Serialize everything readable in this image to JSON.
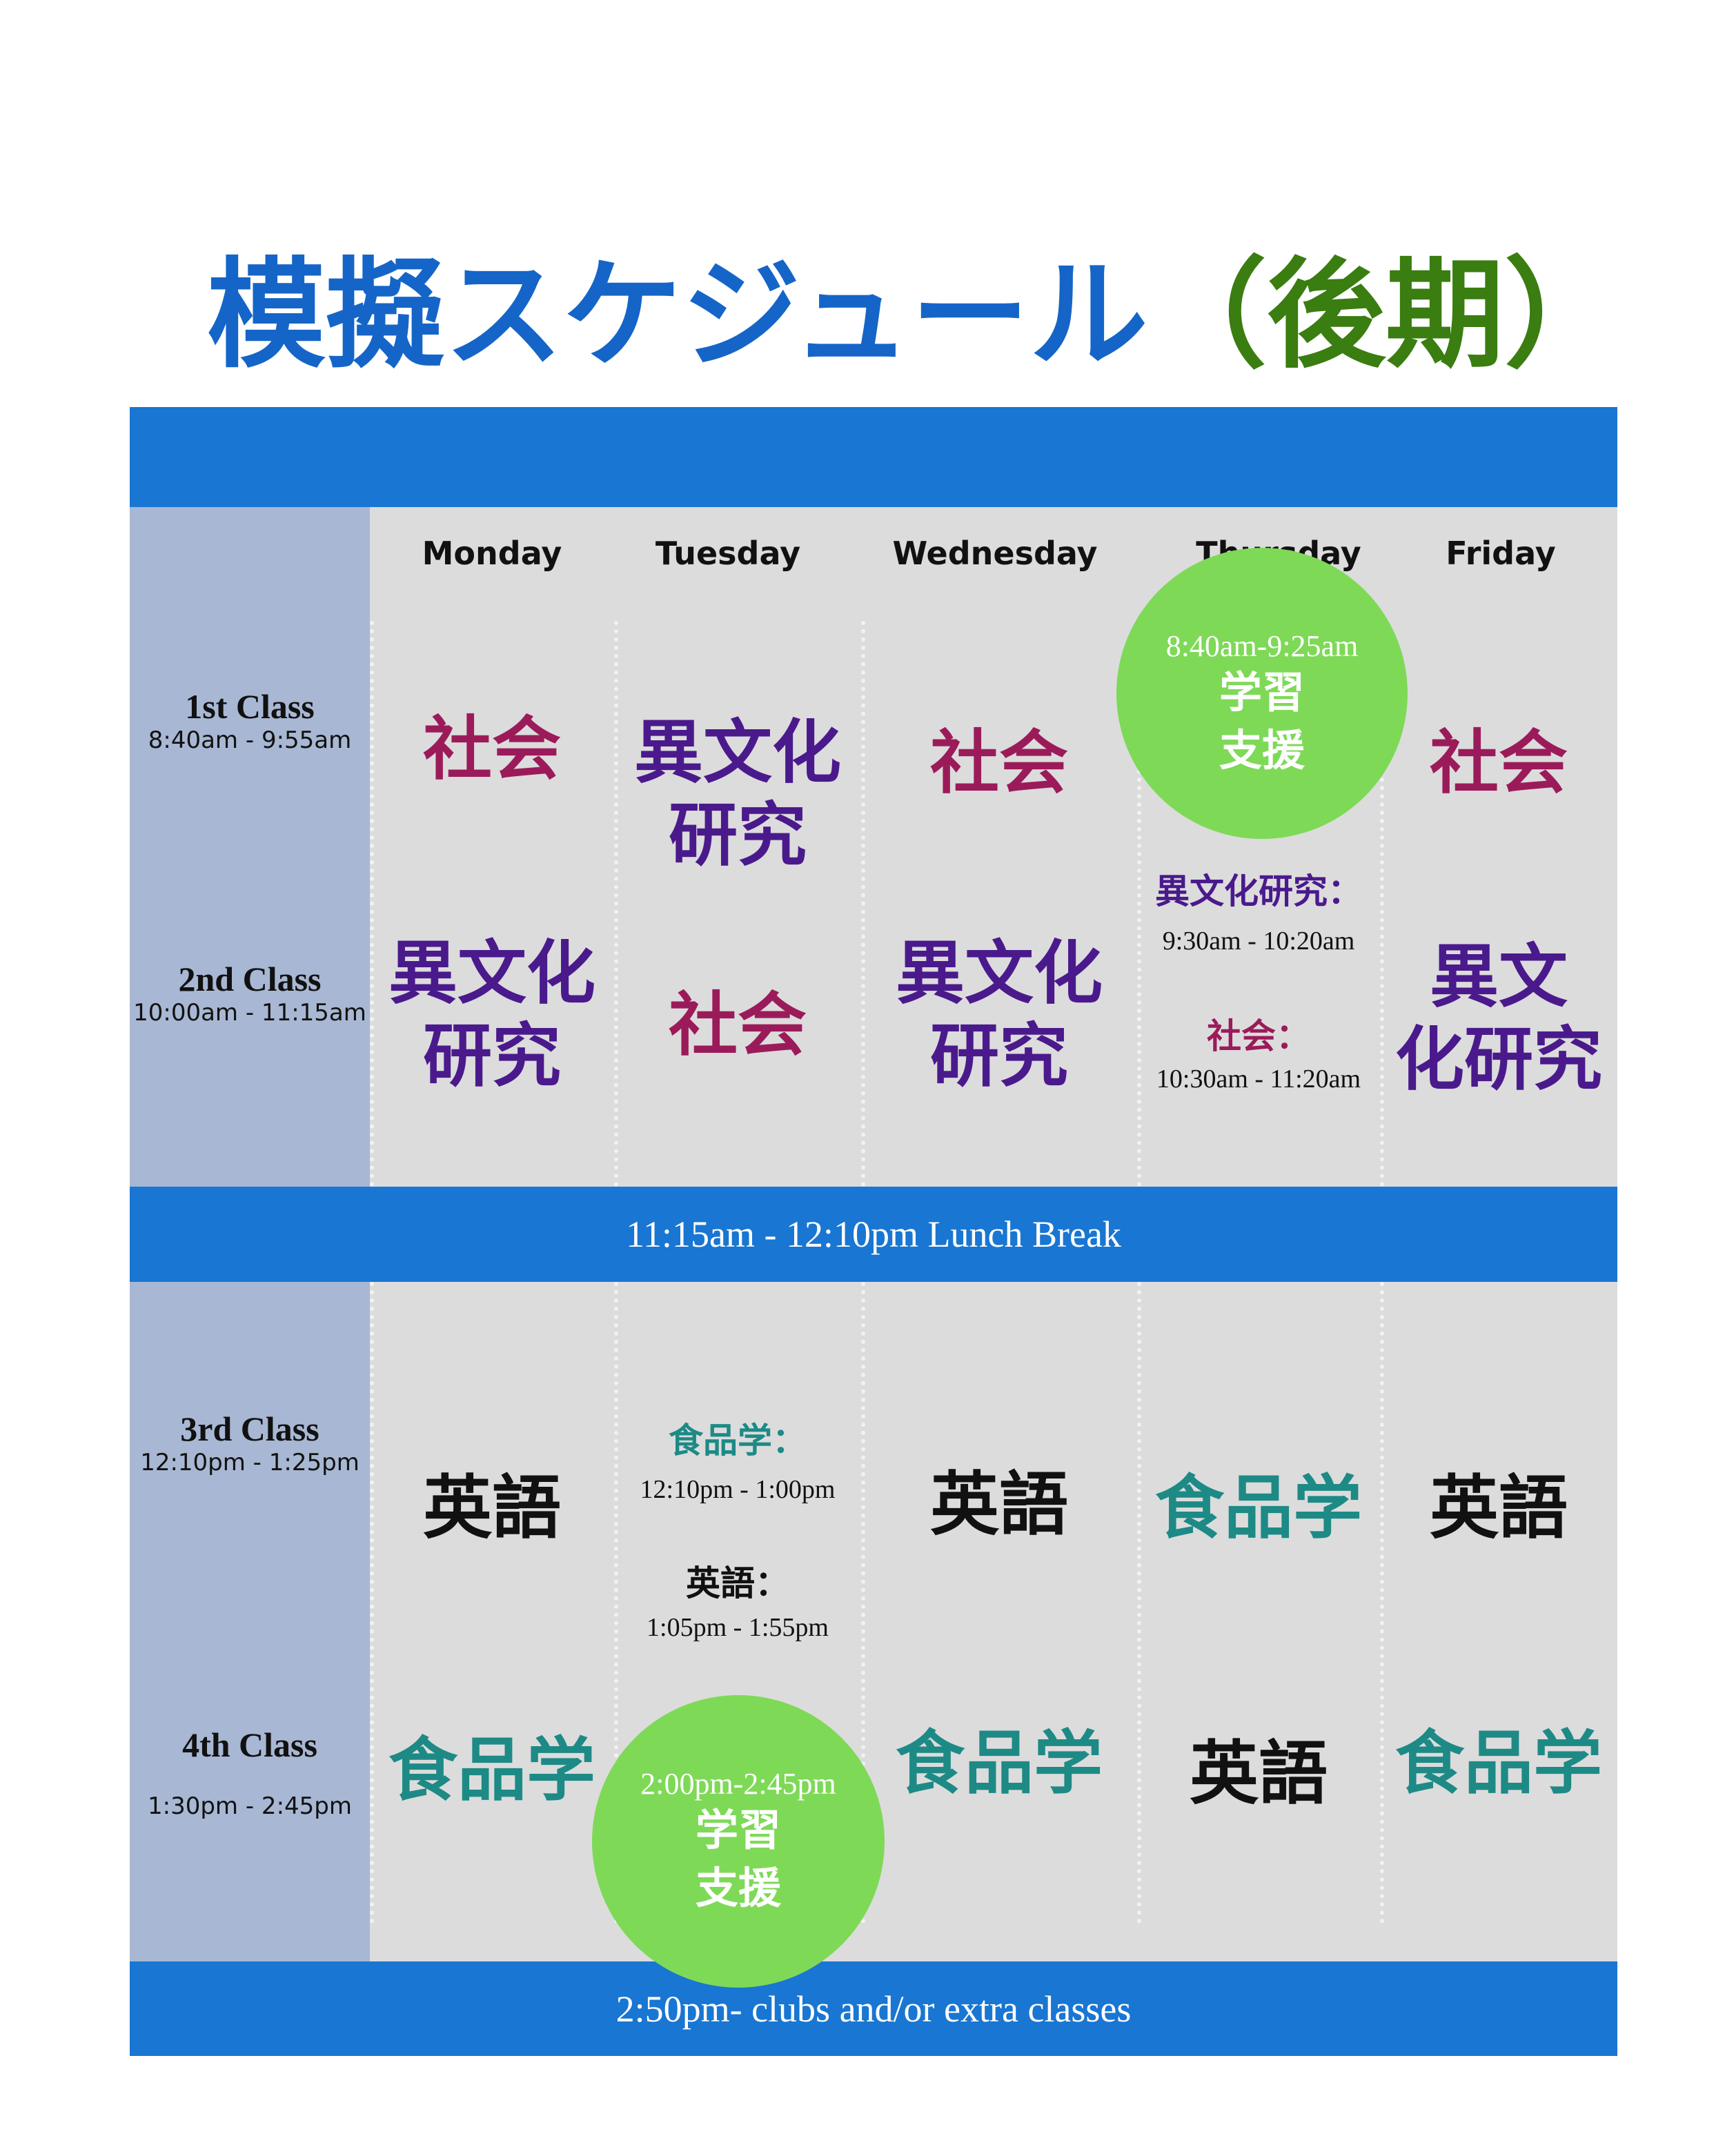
{
  "title": {
    "main": "模擬スケジュール",
    "sub": "（後期）"
  },
  "days": [
    "Monday",
    "Tuesday",
    "Wednesday",
    "Thursday",
    "Friday"
  ],
  "periods": {
    "p1": {
      "name": "1st Class",
      "time": "8:40am - 9:55am"
    },
    "p2": {
      "name": "2nd Class",
      "time": "10:00am - 11:15am"
    },
    "p3": {
      "name": "3rd Class",
      "time": "12:10pm - 1:25pm"
    },
    "p4": {
      "name": "4th Class",
      "time": "1:30pm - 2:45pm"
    }
  },
  "lunch": "11:15am - 12:10pm Lunch Break",
  "footer": "2:50pm- clubs and/or extra classes",
  "subjects": {
    "shakai": "社会",
    "ibunka_l1": "異文化",
    "ibunka_l2": "研究",
    "fri_ibunka_l1": "異文",
    "fri_ibunka_l2": "化研究",
    "eigo": "英語",
    "shokuhin": "食品学"
  },
  "thursday": {
    "support_time": "8:40am-9:25am",
    "support_l1": "学習",
    "support_l2": "支援",
    "ibunka_label": "異文化研究：",
    "ibunka_time": "9:30am - 10:20am",
    "shakai_label": "社会：",
    "shakai_time": "10:30am - 11:20am"
  },
  "tuesday": {
    "shokuhin_label": "食品学：",
    "shokuhin_time": "12:10pm - 1:00pm",
    "eigo_label": "英語：",
    "eigo_time": "1:05pm - 1:55pm",
    "support_time": "2:00pm-2:45pm",
    "support_l1": "学習",
    "support_l2": "支援"
  },
  "colors": {
    "band": "#1976d2",
    "grey": "#dcdcdc",
    "slate": "#a8b7d3",
    "support_circle": "#7ed957",
    "shakai": "#9b1b5a",
    "ibunka": "#4a1a8c",
    "shokuhin": "#1d8a86"
  }
}
